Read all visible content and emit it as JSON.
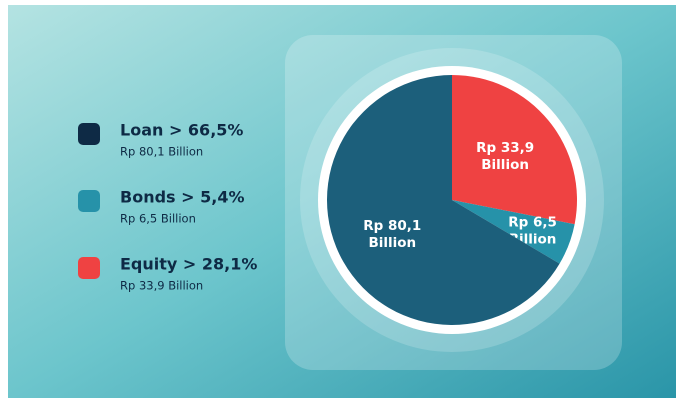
{
  "chart_data": {
    "type": "pie",
    "labels": [
      "Loan > 66,5%",
      "Bonds > 5,4%",
      "Equity > 28,1%"
    ],
    "amounts": [
      "Rp 80,1 Billion",
      "Rp 6,5 Billion",
      "Rp 33,9 Billion"
    ],
    "values": [
      66.5,
      5.4,
      28.1
    ],
    "colors": [
      "#1c5f7b",
      "#2692a9",
      "#ef4242"
    ],
    "legend_colors": [
      "#0e2a45",
      "#2692a9",
      "#ef4242"
    ]
  }
}
